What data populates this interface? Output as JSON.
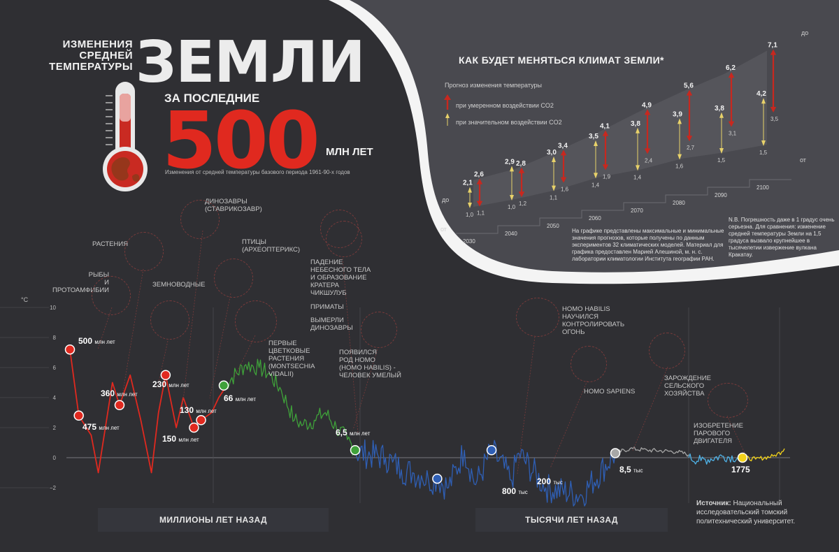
{
  "header": {
    "title_small_1": "Изменения",
    "title_small_2": "средней",
    "title_small_3": "температуры",
    "title_big": "ЗЕМЛИ",
    "subtitle_1": "за последние",
    "title_500": "500",
    "subtitle_2": "МЛН ЛЕТ",
    "caption": "Изменения от средней температуры базового периода 1961-90-х годов"
  },
  "axis": {
    "unit": "°C",
    "y_ticks": [
      "10",
      "8",
      "6",
      "4",
      "2",
      "0",
      "−2"
    ],
    "band_left": "МИЛЛИОНЫ ЛЕТ НАЗАД",
    "band_right": "ТЫСЯЧИ ЛЕТ НАЗАД"
  },
  "annotations": {
    "fish": "Рыбы\nи протоамфибии",
    "plants": "Растения",
    "dino": "Динозавры\n(ставрикозавр)",
    "amphib": "Земноводные",
    "birds": "Птицы\n(археоптерикс)",
    "impact": "Падение\nнебесного тела\nи образование\nкратера\nЧикшулуб",
    "primates": "Приматы",
    "extinct": "Вымерли\nдинозавры",
    "flowers": "Первые\nцветковые\nрастения\n(Montsechia\nvidalii)",
    "homo": "Появился\nрод Homo\n(Homo habilis) -\nчеловек умелый",
    "habilis": "Homo Habilis\nнаучился\nконтролировать\nогонь",
    "sapiens": "Homo Sapiens",
    "agri": "Зарождение\nсельского\nхозяйства",
    "steam": "Изобретение\nпарового\nдвигателя"
  },
  "markers": [
    {
      "num": "500",
      "unit": "млн лет"
    },
    {
      "num": "475",
      "unit": "млн лет"
    },
    {
      "num": "360",
      "unit": "млн лет"
    },
    {
      "num": "230",
      "unit": "млн лет"
    },
    {
      "num": "150",
      "unit": "млн лет"
    },
    {
      "num": "130",
      "unit": "млн лет"
    },
    {
      "num": "66",
      "unit": "млн лет"
    },
    {
      "num": "6,5",
      "unit": "млн лет"
    },
    {
      "num": "800",
      "unit": "тыс"
    },
    {
      "num": "200",
      "unit": "тыс"
    },
    {
      "num": "8,5",
      "unit": "тыс"
    },
    {
      "num": "1775",
      "unit": ""
    }
  ],
  "source": {
    "label": "Источник:",
    "text": " Национальный исследовательский томский политехнический университет."
  },
  "forecast": {
    "title": "КАК БУДЕТ МЕНЯТЬСЯ КЛИМАТ ЗЕМЛИ*",
    "legend_title": "Прогноз изменения температуры",
    "legend_moderate": "при умеренном воздействии CO2",
    "legend_significant": "при значительном воздействии CO2",
    "lbl_do_left": "до",
    "lbl_ot_left": "от",
    "lbl_do_right": "до",
    "lbl_ot_right": "от",
    "method_note": "На графике представлены максимальные и минимальные значения прогнозов, которые получены по данным экспериментов 32 климатических моделей. Материал для графика предоставлен Марией Алешиной, м. н. с. лаборатории климатологии Института географии РАН.",
    "nb_note": "N.B. Погрешность даже в 1 градус очень серьезна. Для сравнения: изменение средней температуры Земли на 1,5 градуса вызвало крупнейшее в тысячелетии извержение вулкана Кракатау."
  },
  "colors": {
    "bg": "#2f2f33",
    "red": "#e0291f",
    "green": "#3fa13a",
    "blue": "#2f5fb5",
    "lightblue": "#4fb3e8",
    "yellow": "#f2d21b",
    "gray": "#a7a7a7",
    "forecast_panel": "#d9d9d9"
  },
  "chart_data": [
    {
      "type": "line",
      "title": "",
      "ylabel": "°C",
      "ylim": [
        -2,
        10
      ],
      "series": [
        {
          "segment": "million years (red)",
          "x_units": "млн лет назад",
          "x": [
            500,
            475,
            440,
            420,
            380,
            360,
            330,
            300,
            270,
            250,
            230,
            200,
            180,
            150,
            130,
            100,
            80,
            66
          ],
          "values": [
            7.2,
            2.8,
            1.5,
            -1,
            5,
            3.5,
            5.5,
            2.5,
            -1,
            3,
            5.5,
            2,
            4,
            2,
            2.5,
            3,
            4,
            4.5
          ]
        },
        {
          "segment": "million years (green)",
          "x_units": "млн лет назад",
          "x": [
            66,
            56,
            50,
            45,
            40,
            34,
            30,
            25,
            20,
            15,
            10,
            6.5
          ],
          "values": [
            4.8,
            6.2,
            6,
            5.5,
            4.5,
            2.5,
            2.2,
            2.5,
            3,
            2,
            1.2,
            0.5
          ]
        },
        {
          "segment": "thousand years (blue)",
          "x_units": "тыс лет назад",
          "x": [
            6500,
            3000,
            2500,
            2000,
            1500,
            1200,
            1000,
            800,
            600,
            400,
            300,
            200,
            120,
            100,
            50,
            20,
            8.5
          ],
          "values": [
            0.4,
            0,
            -0.3,
            -0.8,
            -1,
            -1.2,
            -1.5,
            -1.4,
            -2,
            0.5,
            -1.8,
            0.5,
            -1.5,
            0.3,
            -2,
            -2.5,
            0.3
          ]
        },
        {
          "segment": "thousand years (gray)",
          "x_units": "тыс лет назад",
          "x": [
            8.5,
            6,
            4,
            2,
            1.5
          ],
          "values": [
            0.3,
            0.6,
            0.5,
            0.4,
            0.2
          ]
        },
        {
          "segment": "thousand years (light blue)",
          "x_units": "тыс лет назад",
          "x": [
            1.5,
            1,
            0.5,
            0.3
          ],
          "values": [
            0,
            -0.2,
            0.1,
            0
          ]
        },
        {
          "segment": "since 1775 (yellow)",
          "x_units": "год",
          "x": [
            1775,
            1850,
            1950,
            2000,
            2015
          ],
          "values": [
            0,
            -0.1,
            0.1,
            0.4,
            0.6
          ]
        }
      ]
    },
    {
      "type": "bar",
      "title": "КАК БУДЕТ МЕНЯТЬСЯ КЛИМАТ ЗЕМЛИ*",
      "categories": [
        "2030",
        "2040",
        "2050",
        "2060",
        "2070",
        "2080",
        "2090",
        "2100"
      ],
      "series": [
        {
          "name": "при умеренном воздействии CO2",
          "color": "#e8d26a",
          "min": [
            1.0,
            1.0,
            1.1,
            1.4,
            1.4,
            1.6,
            1.5,
            1.5
          ],
          "max": [
            2.1,
            2.9,
            3.0,
            3.5,
            3.8,
            3.9,
            3.8,
            4.2
          ],
          "labels_min": [
            "1,0",
            "1,0",
            "1,1",
            "1,4",
            "1,4",
            "1,6",
            "1,5",
            "1,5"
          ],
          "labels_max": [
            "2,1",
            "2,9",
            "3,0",
            "3,5",
            "3,8",
            "3,9",
            "3,8",
            "4,2"
          ]
        },
        {
          "name": "при значительном воздействии CO2",
          "color": "#c8281f",
          "min": [
            1.1,
            1.2,
            1.6,
            1.9,
            2.4,
            2.7,
            3.1,
            3.5
          ],
          "max": [
            2.6,
            2.8,
            3.4,
            4.1,
            4.9,
            5.6,
            6.2,
            7.1
          ],
          "labels_min": [
            "1,1",
            "1,2",
            "1,6",
            "1,9",
            "2,4",
            "2,7",
            "3,1",
            "3,5"
          ],
          "labels_max": [
            "2,6",
            "2,8",
            "3,4",
            "4,1",
            "4,9",
            "5,6",
            "6,2",
            "7,1"
          ]
        }
      ]
    }
  ]
}
